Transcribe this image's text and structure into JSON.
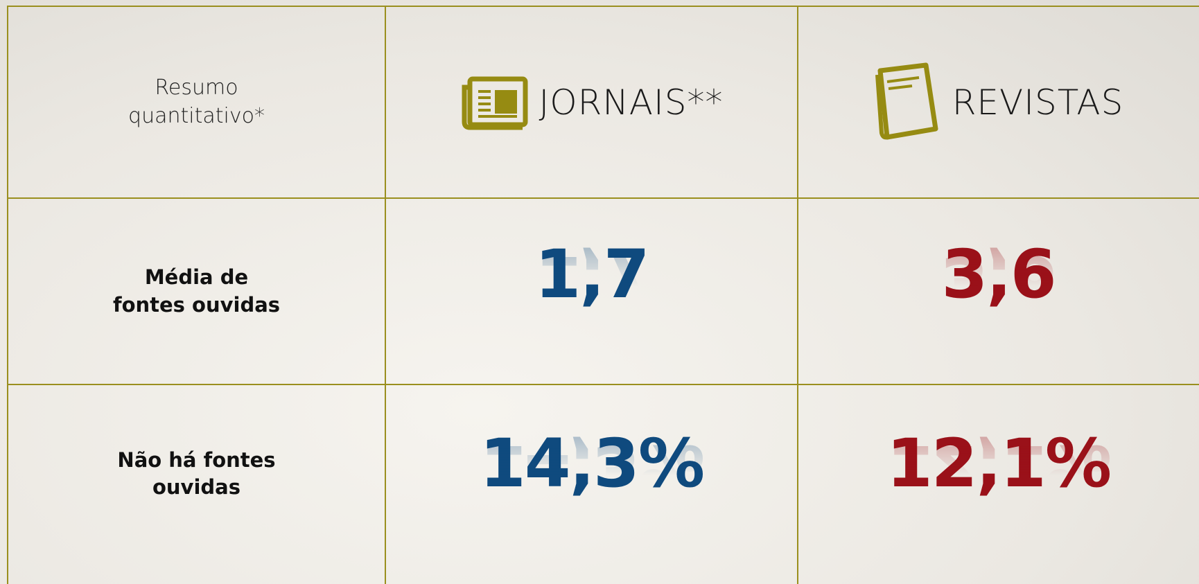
{
  "table": {
    "header": [
      "Resumo\nquantitativo*",
      "JORNAIS**",
      "REVISTAS"
    ],
    "rows": [
      [
        "Média de\nfontes ouvidas",
        "1,7",
        "3,6"
      ],
      [
        "Não há fontes\nouvidas",
        "14,3%",
        "12,1%"
      ]
    ]
  }
}
